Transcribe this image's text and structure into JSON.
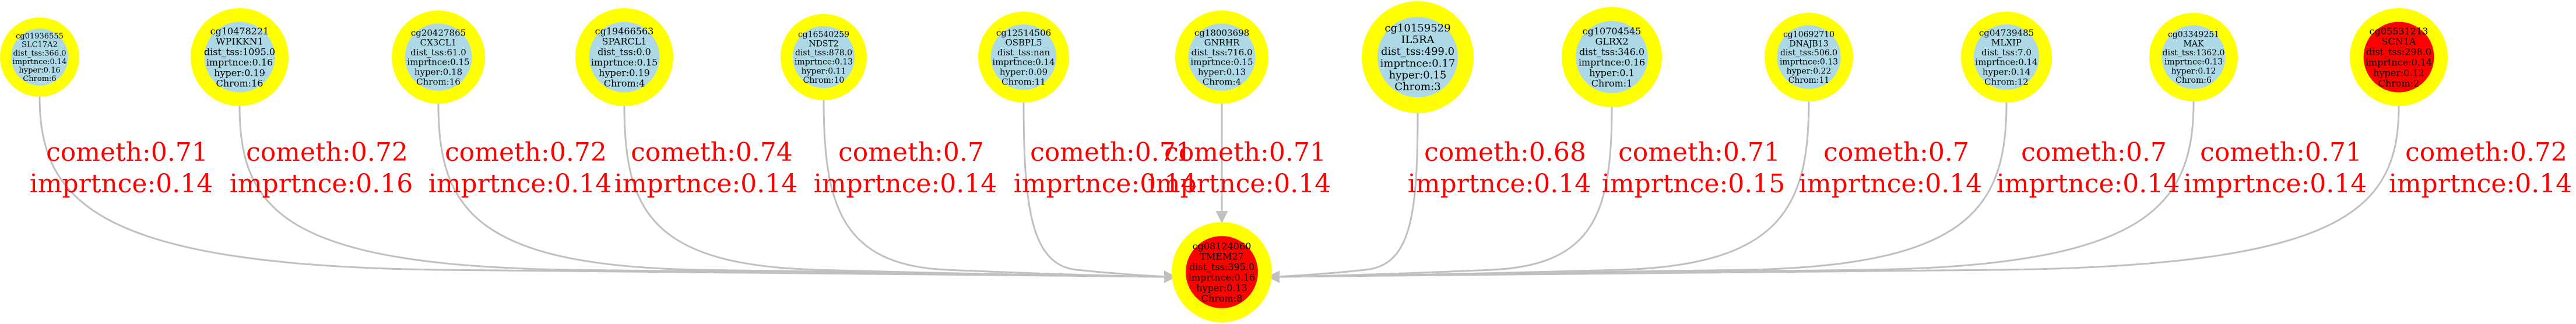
{
  "colors": {
    "ring": "#ffff00",
    "node_fill": "#add8e6",
    "highlight_fill": "#ff0000",
    "edge": "#c0c0c0",
    "edge_label": "#ff0000",
    "background": "#ffffff"
  },
  "target": {
    "lines": [
      "cg08124060",
      "TMEM27",
      "dist_tss:395.0",
      "imprtnce:0.16",
      "hyper:0.13",
      "Chrom:8"
    ],
    "fill": "#ff0000"
  },
  "sources": [
    {
      "lines": [
        "cg01936555",
        "SLC17A2",
        "dist_tss:366.0",
        "imprtnce:0.14",
        "hyper:0.16",
        "Chrom:6"
      ],
      "fill": "#add8e6",
      "edge": {
        "cometh": "cometh:0.71",
        "imprtnce": "imprtnce:0.14"
      }
    },
    {
      "lines": [
        "cg10478221",
        "WPIKKN1",
        "dist_tss:1095.0",
        "imprtnce:0.16",
        "hyper:0.19",
        "Chrom:16"
      ],
      "fill": "#add8e6",
      "edge": {
        "cometh": "cometh:0.72",
        "imprtnce": "imprtnce:0.16"
      }
    },
    {
      "lines": [
        "cg20427865",
        "CX3CL1",
        "dist_tss:61.0",
        "imprtnce:0.15",
        "hyper:0.18",
        "Chrom:16"
      ],
      "fill": "#add8e6",
      "edge": {
        "cometh": "cometh:0.72",
        "imprtnce": "imprtnce:0.14"
      }
    },
    {
      "lines": [
        "cg19466563",
        "SPARCL1",
        "dist_tss:0.0",
        "imprtnce:0.15",
        "hyper:0.19",
        "Chrom:4"
      ],
      "fill": "#add8e6",
      "edge": {
        "cometh": "cometh:0.74",
        "imprtnce": "imprtnce:0.14"
      }
    },
    {
      "lines": [
        "cg16540259",
        "NDST2",
        "dist_tss:878.0",
        "imprtnce:0.13",
        "hyper:0.11",
        "Chrom:10"
      ],
      "fill": "#add8e6",
      "edge": {
        "cometh": "cometh:0.7",
        "imprtnce": "imprtnce:0.14"
      }
    },
    {
      "lines": [
        "cg12514506",
        "OSBPL5",
        "dist_tss:nan",
        "imprtnce:0.14",
        "hyper:0.09",
        "Chrom:11"
      ],
      "fill": "#add8e6",
      "edge": {
        "cometh": "cometh:0.71",
        "imprtnce": "imprtnce:0.14"
      }
    },
    {
      "lines": [
        "cg18003698",
        "GNRHR",
        "dist_tss:716.0",
        "imprtnce:0.15",
        "hyper:0.13",
        "Chrom:4"
      ],
      "fill": "#add8e6",
      "edge": {
        "cometh": "cometh:0.71",
        "imprtnce": "imprtnce:0.14"
      }
    },
    {
      "lines": [
        "cg10159529",
        "IL5RA",
        "dist_tss:499.0",
        "imprtnce:0.17",
        "hyper:0.15",
        "Chrom:3"
      ],
      "fill": "#add8e6",
      "edge": {
        "cometh": "cometh:0.68",
        "imprtnce": "imprtnce:0.14"
      }
    },
    {
      "lines": [
        "cg10704545",
        "GLRX2",
        "dist_tss:346.0",
        "imprtnce:0.16",
        "hyper:0.1",
        "Chrom:1"
      ],
      "fill": "#add8e6",
      "edge": {
        "cometh": "cometh:0.71",
        "imprtnce": "imprtnce:0.15"
      }
    },
    {
      "lines": [
        "cg10692710",
        "DNAJB13",
        "dist_tss:506.0",
        "imprtnce:0.13",
        "hyper:0.22",
        "Chrom:11"
      ],
      "fill": "#add8e6",
      "edge": {
        "cometh": "cometh:0.7",
        "imprtnce": "imprtnce:0.14"
      }
    },
    {
      "lines": [
        "cg04739485",
        "MLXIP",
        "dist_tss:7.0",
        "imprtnce:0.14",
        "hyper:0.14",
        "Chrom:12"
      ],
      "fill": "#add8e6",
      "edge": {
        "cometh": "cometh:0.7",
        "imprtnce": "imprtnce:0.14"
      }
    },
    {
      "lines": [
        "cg03349251",
        "MAK",
        "dist_tss:1362.0",
        "imprtnce:0.13",
        "hyper:0.12",
        "Chrom:6"
      ],
      "fill": "#add8e6",
      "edge": {
        "cometh": "cometh:0.71",
        "imprtnce": "imprtnce:0.14"
      }
    },
    {
      "lines": [
        "cg05531213",
        "SCN1A",
        "dist_tss:298.0",
        "imprtnce:0.14",
        "hyper:0.12",
        "Chrom:2"
      ],
      "fill": "#ff0000",
      "edge": {
        "cometh": "cometh:0.72",
        "imprtnce": "imprtnce:0.14"
      }
    }
  ]
}
